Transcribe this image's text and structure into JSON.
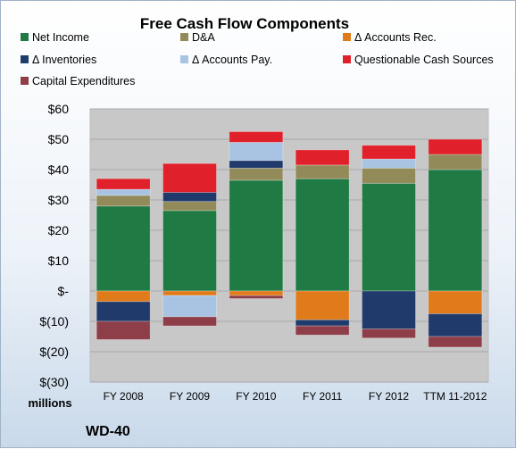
{
  "chart_data": {
    "type": "bar",
    "title": "Free Cash Flow Components",
    "company": "WD-40",
    "units_label": "millions",
    "categories": [
      "FY 2008",
      "FY 2009",
      "FY 2010",
      "FY 2011",
      "FY 2012",
      "TTM 11-2012"
    ],
    "y_ticks": [
      "$60",
      "$50",
      "$40",
      "$30",
      "$20",
      "$10",
      "$-",
      "$(10)",
      "$(20)",
      "$(30)"
    ],
    "ylim": [
      -30,
      60
    ],
    "stacked": true,
    "series": [
      {
        "name": "Net Income",
        "color": "#1f7a44",
        "values": [
          28.0,
          26.5,
          36.5,
          37.0,
          35.5,
          40.0
        ]
      },
      {
        "name": "D&A",
        "color": "#938a5a",
        "values": [
          3.5,
          3.0,
          4.0,
          4.5,
          5.0,
          5.0
        ]
      },
      {
        "name": "Δ Accounts Rec.",
        "color": "#e07b1c",
        "values": [
          -3.5,
          -1.5,
          -1.5,
          -9.5,
          0,
          -7.5
        ]
      },
      {
        "name": "Δ Inventories",
        "color": "#1f3a6b",
        "values": [
          -6.5,
          3.0,
          2.5,
          -2.0,
          -12.5,
          -7.5
        ]
      },
      {
        "name": "Δ Accounts Pay.",
        "color": "#a9c3e3",
        "values": [
          2.0,
          -7.0,
          6.0,
          0,
          3.0,
          0
        ]
      },
      {
        "name": "Questionable Cash Sources",
        "color": "#e0202a",
        "values": [
          3.5,
          9.5,
          3.5,
          5.0,
          4.5,
          5.0
        ]
      },
      {
        "name": "Capital Expenditures",
        "color": "#8e3e48",
        "values": [
          -6.0,
          -3.0,
          -1.0,
          -3.0,
          -3.0,
          -3.5
        ]
      }
    ]
  }
}
